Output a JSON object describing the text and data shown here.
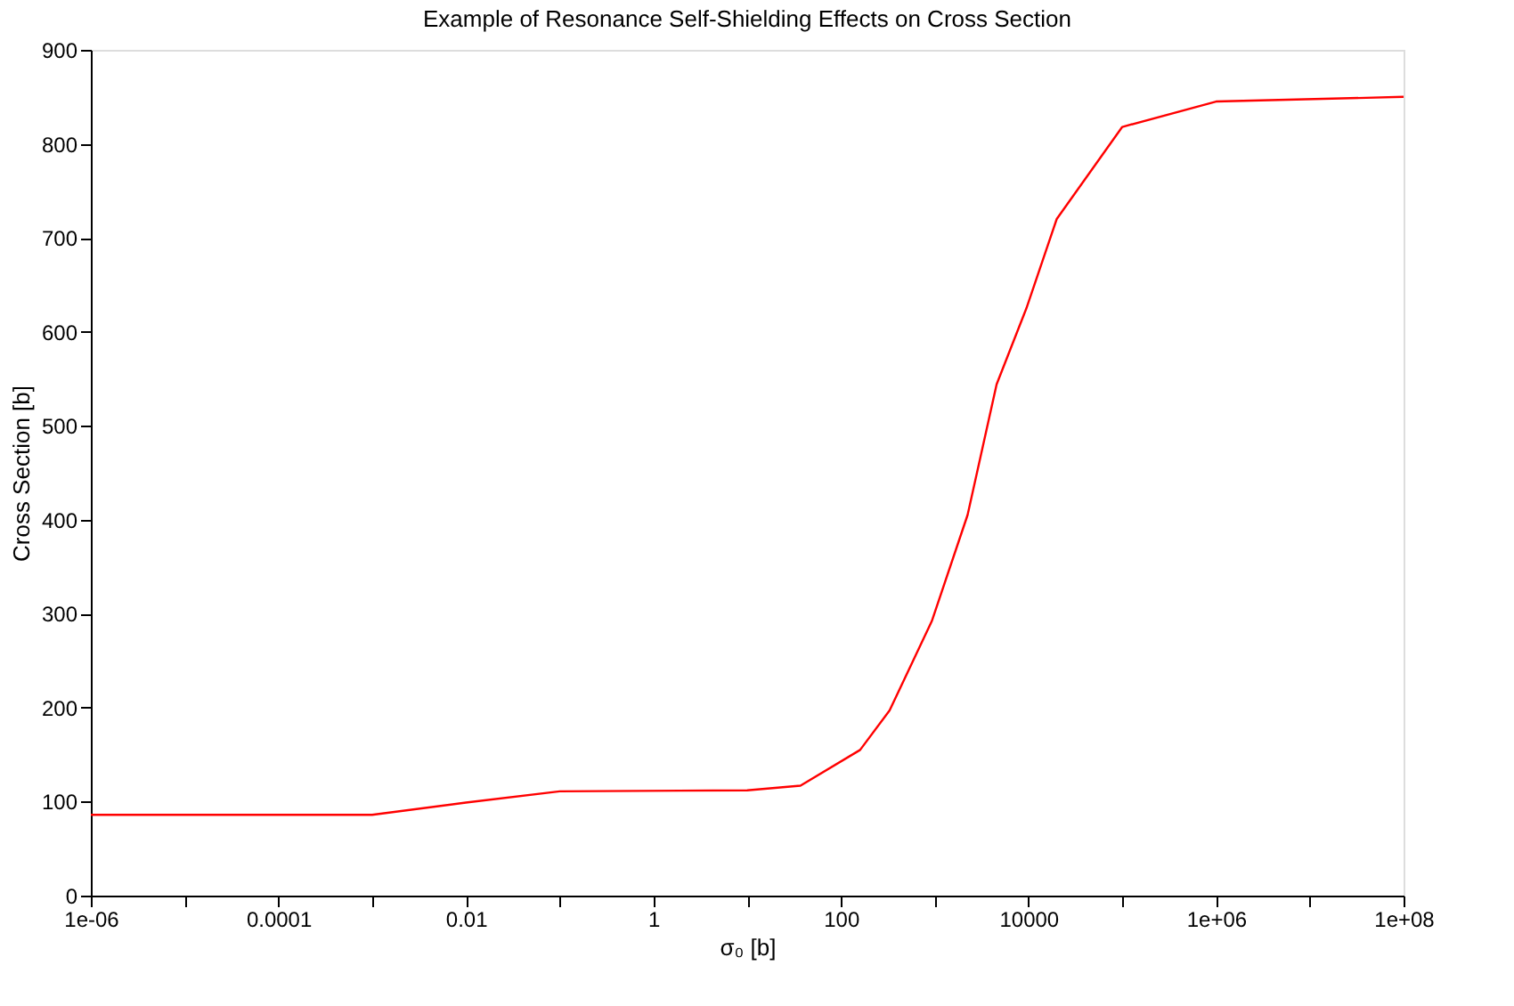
{
  "chart_data": {
    "type": "line",
    "title": "Example of Resonance Self-Shielding Effects on Cross Section",
    "xlabel": "σ₀ [b]",
    "ylabel": "Cross Section [b]",
    "log": "x",
    "x": [
      1e-06,
      0.001,
      0.01,
      0.1,
      10,
      37,
      160,
      330,
      930,
      2240,
      4570,
      9500,
      20000,
      100000,
      1000000,
      100000000
    ],
    "series": [
      {
        "color": "#ff0000",
        "values": [
          86,
          86,
          99,
          111,
          112,
          117,
          155,
          197,
          292,
          405,
          544,
          625,
          720,
          818,
          845,
          850
        ]
      }
    ],
    "xlim": [
      1e-06,
      100000000
    ],
    "xticks": [
      {
        "value": 1e-06,
        "label": "1e-06"
      },
      {
        "value": 1e-05,
        "label": null
      },
      0.0001,
      {
        "value": 0.001,
        "label": null
      },
      0.01,
      {
        "value": 0.1,
        "label": null
      },
      1,
      {
        "value": 10,
        "label": null
      },
      100,
      {
        "value": 1000,
        "label": null
      },
      10000,
      {
        "value": 100000,
        "label": null
      },
      {
        "value": 1000000,
        "label": "1e+06"
      },
      {
        "value": 10000000,
        "label": null
      },
      {
        "value": 100000000,
        "label": "1e+08"
      }
    ],
    "ylim": [
      0,
      900
    ],
    "yticks": [
      0,
      100,
      200,
      300,
      400,
      500,
      600,
      700,
      800,
      900
    ],
    "grid": false,
    "marker": "none",
    "line_style": "solid"
  }
}
